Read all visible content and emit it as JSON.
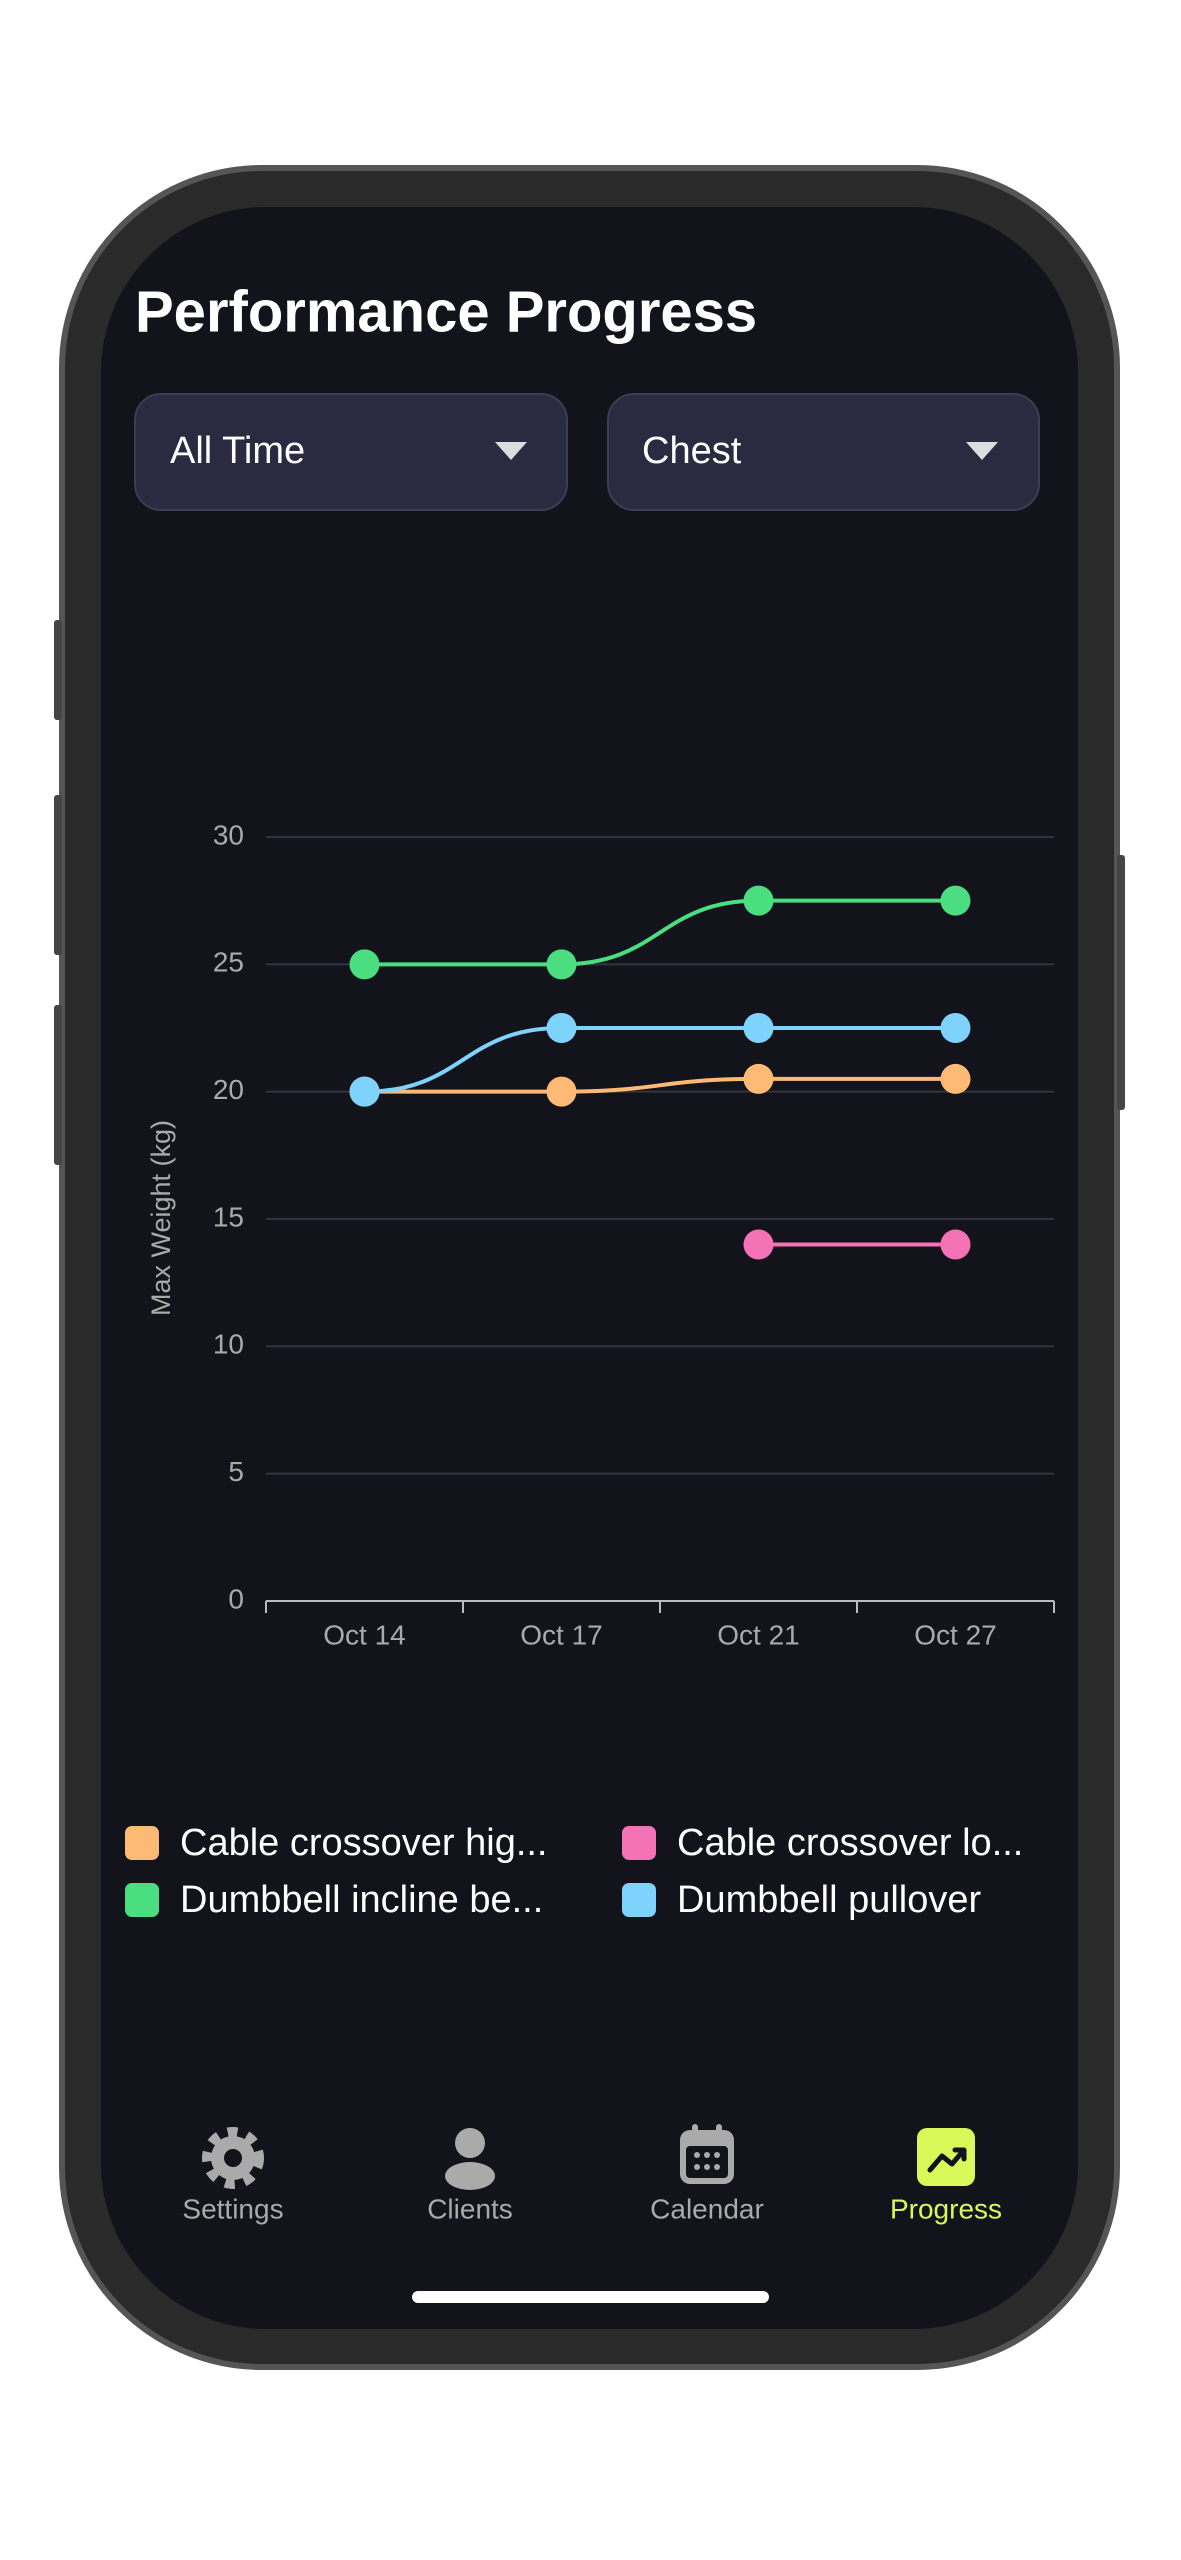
{
  "header": {
    "title": "Performance Progress"
  },
  "filters": [
    "All Time",
    "Chest"
  ],
  "chart_data": {
    "type": "line",
    "ylabel": "Max Weight (kg)",
    "categories": [
      "Oct 14",
      "Oct 17",
      "Oct 21",
      "Oct 27"
    ],
    "series": [
      {
        "name": "Cable crossover hig...",
        "color": "#fdba74",
        "values": [
          20,
          20,
          20.5,
          20.5
        ]
      },
      {
        "name": "Cable crossover lo...",
        "color": "#f472b6",
        "values": [
          null,
          null,
          14,
          14
        ]
      },
      {
        "name": "Dumbbell incline be...",
        "color": "#4ade80",
        "values": [
          25,
          25,
          27.5,
          27.5
        ]
      },
      {
        "name": "Dumbbell pullover",
        "color": "#7dd3fc",
        "values": [
          20,
          22.5,
          22.5,
          22.5
        ]
      }
    ],
    "ylim": [
      0,
      30
    ],
    "yticks": [
      0,
      5,
      10,
      15,
      20,
      25,
      30
    ],
    "grid": true
  },
  "nav": [
    "Settings",
    "Clients",
    "Calendar",
    "Progress"
  ]
}
